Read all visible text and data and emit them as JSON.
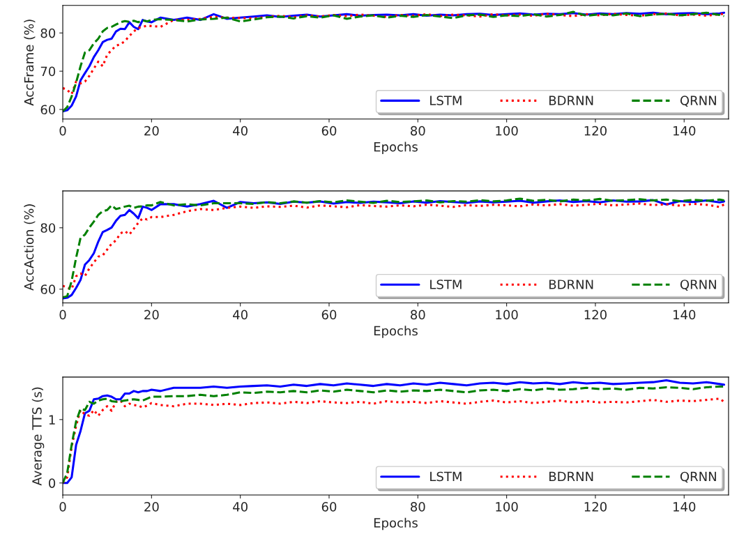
{
  "chart_data": [
    {
      "type": "line",
      "xlabel": "Epochs",
      "ylabel": "AccFrame (%)",
      "xlim": [
        0,
        150
      ],
      "xticks": [
        0,
        20,
        40,
        60,
        80,
        100,
        120,
        140
      ],
      "ylim": [
        57.5,
        87.2
      ],
      "yticks": [
        60,
        70,
        80
      ],
      "grid": false,
      "legend": "bottom right",
      "x": [
        0,
        1,
        2,
        3,
        4,
        5,
        6,
        7,
        8,
        9,
        10,
        11,
        12,
        13,
        14,
        15,
        16,
        17,
        18,
        19,
        20,
        22,
        25,
        28,
        31,
        34,
        37,
        40,
        43,
        46,
        49,
        52,
        55,
        58,
        61,
        64,
        67,
        70,
        73,
        76,
        79,
        82,
        85,
        88,
        91,
        94,
        97,
        100,
        103,
        106,
        109,
        112,
        115,
        118,
        121,
        124,
        127,
        130,
        133,
        136,
        139,
        142,
        145,
        148,
        149
      ],
      "series": [
        {
          "name": "LSTM",
          "color": "#0000ff",
          "line_style": "solid",
          "values": [
            59.5,
            59.8,
            61,
            63.4,
            67.6,
            69.5,
            71.3,
            73.7,
            75.5,
            77.6,
            78.2,
            78.5,
            80.4,
            81.1,
            81,
            82.8,
            81.6,
            81,
            83.4,
            83,
            82.8,
            84,
            83.4,
            84,
            83.4,
            84.9,
            83.7,
            84,
            84.3,
            84.6,
            84.2,
            84.5,
            84.8,
            84.3,
            84.6,
            84.9,
            84.5,
            84.7,
            84.8,
            84.6,
            84.9,
            84.5,
            84.8,
            84.6,
            84.9,
            85.0,
            84.7,
            84.9,
            85.1,
            84.8,
            85.0,
            84.9,
            85.2,
            84.8,
            85.1,
            84.9,
            85.2,
            85.0,
            85.3,
            84.9,
            85.1,
            85.2,
            84.9,
            85.1,
            85.3
          ]
        },
        {
          "name": "BDRNN",
          "color": "#ff0000",
          "line_style": "dotted",
          "values": [
            65.6,
            65.1,
            64,
            67.3,
            66.8,
            67.3,
            68.8,
            70.7,
            72.5,
            71.3,
            74.3,
            75.5,
            76.7,
            77,
            77.9,
            79.2,
            80.4,
            81.3,
            81.6,
            81.9,
            81.8,
            81.6,
            83.4,
            83.4,
            83.7,
            84.2,
            84,
            83.9,
            83.8,
            84.2,
            84.5,
            84.1,
            84.6,
            84.3,
            84.7,
            84.4,
            84.8,
            84.5,
            84.2,
            84.7,
            84.5,
            84.9,
            84.4,
            84.8,
            84.6,
            84.3,
            84.9,
            84.6,
            84.8,
            84.5,
            85.0,
            84.7,
            84.4,
            84.9,
            84.6,
            85.0,
            84.7,
            84.5,
            84.9,
            85.1,
            84.6,
            84.8,
            84.5,
            84.9,
            85.0
          ]
        },
        {
          "name": "QRNN",
          "color": "#008000",
          "line_style": "dashed",
          "values": [
            59.5,
            60.6,
            63.4,
            67,
            71.3,
            74.9,
            75.5,
            77.3,
            78.5,
            80.4,
            81.3,
            81.6,
            82.2,
            82.8,
            83.1,
            82.9,
            83.2,
            82.8,
            83.3,
            83.0,
            83.4,
            83.6,
            83.4,
            83,
            83.5,
            83.7,
            84,
            83,
            83.5,
            84.1,
            84.3,
            83.8,
            84.4,
            84.0,
            84.6,
            83.7,
            84.3,
            84.6,
            84.0,
            84.5,
            84.2,
            84.7,
            84.3,
            83.9,
            84.6,
            84.8,
            84.2,
            84.6,
            84.4,
            84.9,
            84.3,
            84.7,
            85.5,
            84.5,
            84.9,
            84.6,
            85.1,
            84.4,
            84.8,
            85.0,
            84.6,
            84.9,
            85.3,
            84.7,
            84.4
          ]
        }
      ]
    },
    {
      "type": "line",
      "xlabel": "Epochs",
      "ylabel": "AccAction (%)",
      "xlim": [
        0,
        150
      ],
      "xticks": [
        0,
        20,
        40,
        60,
        80,
        100,
        120,
        140
      ],
      "ylim": [
        55.5,
        92
      ],
      "yticks": [
        60,
        80
      ],
      "grid": false,
      "legend": "bottom right",
      "x": [
        0,
        1,
        2,
        3,
        4,
        5,
        6,
        7,
        8,
        9,
        10,
        11,
        12,
        13,
        14,
        15,
        16,
        17,
        18,
        19,
        20,
        22,
        25,
        28,
        31,
        34,
        37,
        40,
        43,
        46,
        49,
        52,
        55,
        58,
        61,
        64,
        67,
        70,
        73,
        76,
        79,
        82,
        85,
        88,
        91,
        94,
        97,
        100,
        103,
        106,
        109,
        112,
        115,
        118,
        121,
        124,
        127,
        130,
        133,
        136,
        139,
        142,
        145,
        148,
        149
      ],
      "series": [
        {
          "name": "LSTM",
          "color": "#0000ff",
          "line_style": "solid",
          "values": [
            57,
            57.2,
            58.1,
            60.4,
            63,
            68,
            69.5,
            71.7,
            75.5,
            78.6,
            79.3,
            80.1,
            82.3,
            83.9,
            84.2,
            85.8,
            84.6,
            83.1,
            86.9,
            86.5,
            85.8,
            87.7,
            87.7,
            86.9,
            87.7,
            88.8,
            86.5,
            88.4,
            88.0,
            88.3,
            87.8,
            88.5,
            88.2,
            88.6,
            87.9,
            88.4,
            88.1,
            88.5,
            88.3,
            88.0,
            88.6,
            88.2,
            88.7,
            88.4,
            88.1,
            88.6,
            88.3,
            88.5,
            88.8,
            88.2,
            88.6,
            88.9,
            88.4,
            88.7,
            88.3,
            88.9,
            88.5,
            88.6,
            89.0,
            87.6,
            88.7,
            88.4,
            88.9,
            88.3,
            88.6
          ]
        },
        {
          "name": "BDRNN",
          "color": "#ff0000",
          "line_style": "dotted",
          "values": [
            61.1,
            60.5,
            60,
            64.2,
            65.1,
            64.3,
            66.8,
            68.7,
            70.6,
            71,
            72.9,
            74.8,
            75.9,
            78.2,
            78.9,
            77.8,
            79.7,
            81.6,
            83.1,
            82.7,
            83.5,
            83.5,
            84.2,
            85.4,
            86.1,
            85.8,
            86.5,
            86.9,
            86.5,
            87.0,
            86.8,
            87.2,
            86.6,
            87.3,
            87.0,
            86.7,
            87.4,
            87.1,
            86.9,
            87.3,
            87.0,
            87.5,
            87.2,
            86.8,
            87.4,
            87.1,
            87.5,
            87.3,
            87.0,
            87.6,
            87.3,
            87.7,
            87.2,
            87.5,
            87.8,
            87.3,
            87.6,
            87.9,
            87.4,
            87.7,
            87.2,
            87.8,
            87.5,
            86.8,
            87.6
          ]
        },
        {
          "name": "QRNN",
          "color": "#008000",
          "line_style": "dashed",
          "values": [
            57.3,
            57.7,
            62.7,
            70.2,
            76.7,
            77.8,
            80.1,
            82,
            84.2,
            85.4,
            85.8,
            87.3,
            86.1,
            86.5,
            86.9,
            87.2,
            86.5,
            86.9,
            87.0,
            87.3,
            87.3,
            88.4,
            87.3,
            87.7,
            87.3,
            88,
            88,
            88,
            87.8,
            88.4,
            88.0,
            88.6,
            88.2,
            88.7,
            88.3,
            88.9,
            88.5,
            88.1,
            88.8,
            88.4,
            88.6,
            88.9,
            88.3,
            88.7,
            88.5,
            89.0,
            88.6,
            88.9,
            89.5,
            88.8,
            89.1,
            88.6,
            89.2,
            88.9,
            89.4,
            88.8,
            89.0,
            89.3,
            88.9,
            89.2,
            88.7,
            89.1,
            88.8,
            89.2,
            88.9
          ]
        }
      ]
    },
    {
      "type": "line",
      "xlabel": "Epochs",
      "ylabel": "Average TTS (s)",
      "xlim": [
        0,
        150
      ],
      "xticks": [
        0,
        20,
        40,
        60,
        80,
        100,
        120,
        140
      ],
      "ylim": [
        -0.19,
        1.67
      ],
      "yticks": [
        0,
        1
      ],
      "grid": false,
      "legend": "bottom right",
      "x": [
        0,
        1,
        2,
        3,
        4,
        5,
        6,
        7,
        8,
        9,
        10,
        11,
        12,
        13,
        14,
        15,
        16,
        17,
        18,
        19,
        20,
        22,
        25,
        28,
        31,
        34,
        37,
        40,
        43,
        46,
        49,
        52,
        55,
        58,
        61,
        64,
        67,
        70,
        73,
        76,
        79,
        82,
        85,
        88,
        91,
        94,
        97,
        100,
        103,
        106,
        109,
        112,
        115,
        118,
        121,
        124,
        127,
        130,
        133,
        136,
        139,
        142,
        145,
        148,
        149
      ],
      "series": [
        {
          "name": "LSTM",
          "color": "#0000ff",
          "line_style": "solid",
          "values": [
            0,
            0,
            0.09,
            0.6,
            0.82,
            1.1,
            1.14,
            1.32,
            1.33,
            1.37,
            1.38,
            1.36,
            1.32,
            1.32,
            1.41,
            1.41,
            1.45,
            1.43,
            1.45,
            1.45,
            1.47,
            1.45,
            1.5,
            1.5,
            1.5,
            1.52,
            1.5,
            1.52,
            1.53,
            1.54,
            1.52,
            1.55,
            1.53,
            1.56,
            1.54,
            1.57,
            1.55,
            1.53,
            1.56,
            1.54,
            1.57,
            1.55,
            1.58,
            1.56,
            1.54,
            1.57,
            1.58,
            1.56,
            1.59,
            1.57,
            1.58,
            1.56,
            1.59,
            1.57,
            1.58,
            1.56,
            1.57,
            1.58,
            1.59,
            1.62,
            1.58,
            1.57,
            1.59,
            1.56,
            1.55
          ]
        },
        {
          "name": "BDRNN",
          "color": "#ff0000",
          "line_style": "dotted",
          "values": [
            0,
            0.09,
            0.57,
            0.9,
            1.15,
            1.08,
            1.06,
            1.15,
            1.06,
            1.15,
            1.21,
            1.14,
            1.28,
            1.3,
            1.21,
            1.25,
            1.23,
            1.22,
            1.19,
            1.22,
            1.26,
            1.23,
            1.21,
            1.25,
            1.25,
            1.23,
            1.25,
            1.23,
            1.26,
            1.27,
            1.25,
            1.28,
            1.26,
            1.29,
            1.27,
            1.26,
            1.28,
            1.25,
            1.29,
            1.27,
            1.28,
            1.26,
            1.29,
            1.27,
            1.25,
            1.28,
            1.3,
            1.27,
            1.29,
            1.26,
            1.28,
            1.3,
            1.27,
            1.29,
            1.27,
            1.28,
            1.27,
            1.29,
            1.31,
            1.28,
            1.3,
            1.29,
            1.31,
            1.33,
            1.28
          ]
        },
        {
          "name": "QRNN",
          "color": "#008000",
          "line_style": "dashed",
          "values": [
            0,
            0.16,
            0.6,
            0.97,
            1.17,
            1.15,
            1.28,
            1.25,
            1.3,
            1.32,
            1.33,
            1.29,
            1.28,
            1.29,
            1.3,
            1.31,
            1.32,
            1.31,
            1.3,
            1.33,
            1.36,
            1.36,
            1.37,
            1.37,
            1.39,
            1.37,
            1.39,
            1.43,
            1.42,
            1.44,
            1.43,
            1.45,
            1.43,
            1.46,
            1.44,
            1.47,
            1.45,
            1.43,
            1.46,
            1.44,
            1.46,
            1.45,
            1.47,
            1.45,
            1.43,
            1.46,
            1.47,
            1.45,
            1.48,
            1.46,
            1.49,
            1.47,
            1.48,
            1.5,
            1.48,
            1.49,
            1.47,
            1.5,
            1.49,
            1.51,
            1.5,
            1.48,
            1.51,
            1.52,
            1.52
          ]
        }
      ]
    }
  ]
}
